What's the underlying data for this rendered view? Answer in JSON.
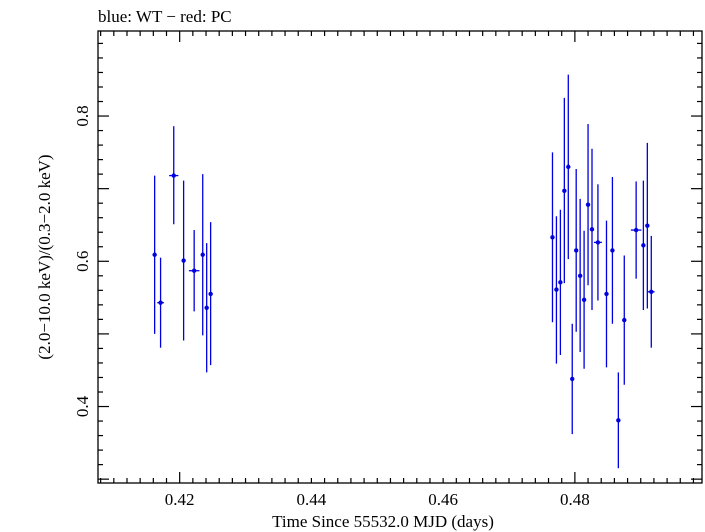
{
  "chart_data": {
    "type": "scatter",
    "title": "blue: WT − red: PC",
    "xlabel": "Time Since 55532.0 MJD (days)",
    "ylabel": "(2.0−10.0 keV)/(0.3−2.0 keV)",
    "xlim": [
      0.4076,
      0.4993
    ],
    "ylim": [
      0.2947,
      0.9171
    ],
    "xticks": [
      0.42,
      0.44,
      0.46,
      0.48
    ],
    "xtick_labels": [
      "0.42",
      "0.44",
      "0.46",
      "0.48"
    ],
    "yticks": [
      0.4,
      0.6,
      0.8
    ],
    "ytick_labels": [
      "0.4",
      "0.6",
      "0.8"
    ],
    "grid": false,
    "colors": {
      "series": "#0000e0",
      "axes": "#000000"
    },
    "series": [
      {
        "color": "blue",
        "points": [
          {
            "x": 0.4162,
            "y": 0.609,
            "xerr": 0.0002,
            "ylo": 0.5,
            "yhi": 0.718
          },
          {
            "x": 0.4171,
            "y": 0.543,
            "xerr": 0.0005,
            "ylo": 0.481,
            "yhi": 0.605
          },
          {
            "x": 0.4191,
            "y": 0.718,
            "xerr": 0.0007,
            "ylo": 0.651,
            "yhi": 0.786
          },
          {
            "x": 0.4206,
            "y": 0.601,
            "xerr": 0.0002,
            "ylo": 0.491,
            "yhi": 0.711
          },
          {
            "x": 0.4222,
            "y": 0.587,
            "xerr": 0.0008,
            "ylo": 0.531,
            "yhi": 0.643
          },
          {
            "x": 0.4235,
            "y": 0.609,
            "xerr": 0.0002,
            "ylo": 0.498,
            "yhi": 0.72
          },
          {
            "x": 0.4241,
            "y": 0.536,
            "xerr": 0.0002,
            "ylo": 0.447,
            "yhi": 0.625
          },
          {
            "x": 0.4247,
            "y": 0.555,
            "xerr": 0.0002,
            "ylo": 0.457,
            "yhi": 0.654
          },
          {
            "x": 0.4766,
            "y": 0.633,
            "xerr": 0.0002,
            "ylo": 0.516,
            "yhi": 0.75
          },
          {
            "x": 0.4772,
            "y": 0.561,
            "xerr": 0.0002,
            "ylo": 0.459,
            "yhi": 0.662
          },
          {
            "x": 0.4778,
            "y": 0.571,
            "xerr": 0.0002,
            "ylo": 0.471,
            "yhi": 0.671
          },
          {
            "x": 0.4784,
            "y": 0.697,
            "xerr": 0.0002,
            "ylo": 0.57,
            "yhi": 0.825
          },
          {
            "x": 0.479,
            "y": 0.73,
            "xerr": 0.0002,
            "ylo": 0.603,
            "yhi": 0.857
          },
          {
            "x": 0.4796,
            "y": 0.438,
            "xerr": 0.0002,
            "ylo": 0.362,
            "yhi": 0.514
          },
          {
            "x": 0.4802,
            "y": 0.615,
            "xerr": 0.0002,
            "ylo": 0.503,
            "yhi": 0.727
          },
          {
            "x": 0.4808,
            "y": 0.58,
            "xerr": 0.0002,
            "ylo": 0.475,
            "yhi": 0.686
          },
          {
            "x": 0.4814,
            "y": 0.547,
            "xerr": 0.0002,
            "ylo": 0.452,
            "yhi": 0.642
          },
          {
            "x": 0.482,
            "y": 0.678,
            "xerr": 0.0002,
            "ylo": 0.567,
            "yhi": 0.789
          },
          {
            "x": 0.4826,
            "y": 0.644,
            "xerr": 0.0002,
            "ylo": 0.533,
            "yhi": 0.755
          },
          {
            "x": 0.4835,
            "y": 0.626,
            "xerr": 0.0006,
            "ylo": 0.546,
            "yhi": 0.706
          },
          {
            "x": 0.4848,
            "y": 0.555,
            "xerr": 0.0002,
            "ylo": 0.454,
            "yhi": 0.656
          },
          {
            "x": 0.4857,
            "y": 0.615,
            "xerr": 0.0002,
            "ylo": 0.514,
            "yhi": 0.716
          },
          {
            "x": 0.4866,
            "y": 0.381,
            "xerr": 0.0002,
            "ylo": 0.315,
            "yhi": 0.447
          },
          {
            "x": 0.4875,
            "y": 0.519,
            "xerr": 0.0002,
            "ylo": 0.43,
            "yhi": 0.608
          },
          {
            "x": 0.4893,
            "y": 0.643,
            "xerr": 0.0008,
            "ylo": 0.576,
            "yhi": 0.71
          },
          {
            "x": 0.4904,
            "y": 0.622,
            "xerr": 0.0002,
            "ylo": 0.533,
            "yhi": 0.711
          },
          {
            "x": 0.491,
            "y": 0.649,
            "xerr": 0.0002,
            "ylo": 0.535,
            "yhi": 0.763
          },
          {
            "x": 0.4916,
            "y": 0.558,
            "xerr": 0.0005,
            "ylo": 0.481,
            "yhi": 0.635
          }
        ]
      }
    ]
  }
}
